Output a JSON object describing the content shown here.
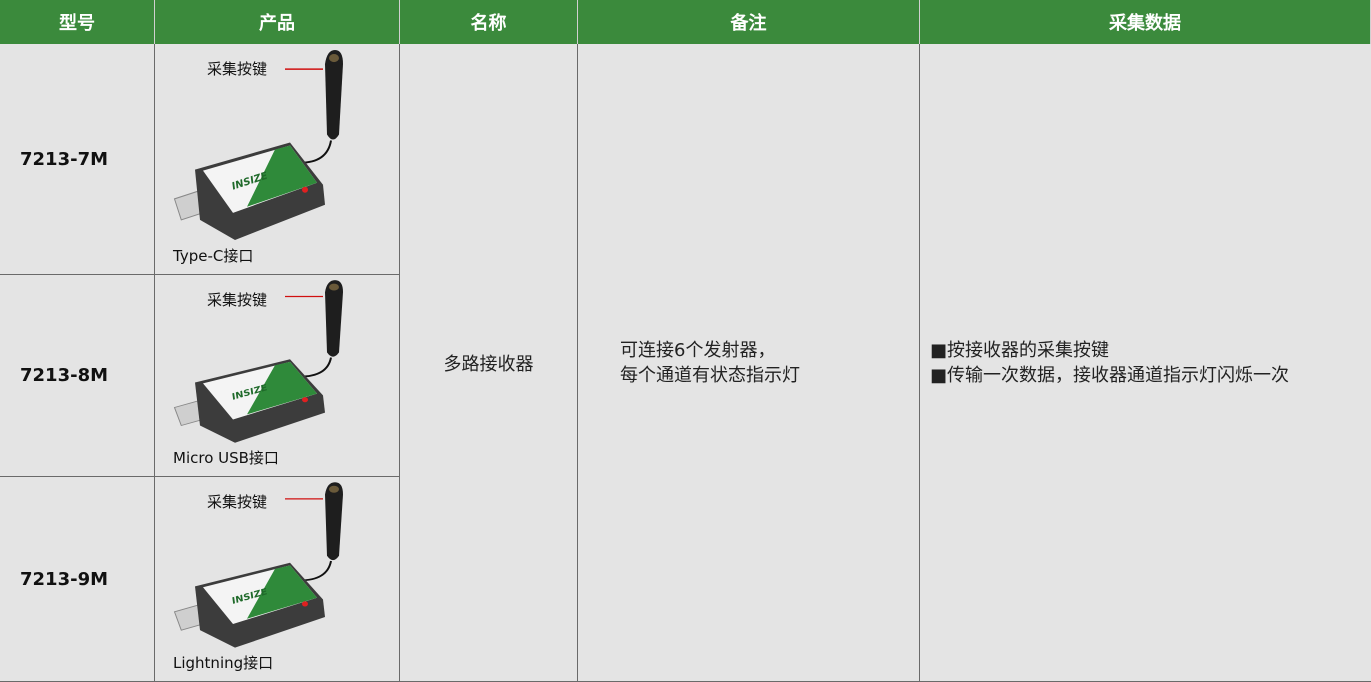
{
  "table": {
    "headers": [
      "型号",
      "产品",
      "名称",
      "备注",
      "采集数据"
    ],
    "product_logo": "INSIZE",
    "rows": [
      {
        "model": "7213-7M",
        "button_label": "采集按键",
        "port_label": "Type-C接口"
      },
      {
        "model": "7213-8M",
        "button_label": "采集按键",
        "port_label": "Micro USB接口"
      },
      {
        "model": "7213-9M",
        "button_label": "采集按键",
        "port_label": "Lightning接口"
      }
    ],
    "name": "多路接收器",
    "remark": [
      "可连接6个发射器，",
      "每个通道有状态指示灯"
    ],
    "data_collection": [
      "■按接收器的采集按键",
      "■传输一次数据，接收器通道指示灯闪烁一次"
    ]
  }
}
